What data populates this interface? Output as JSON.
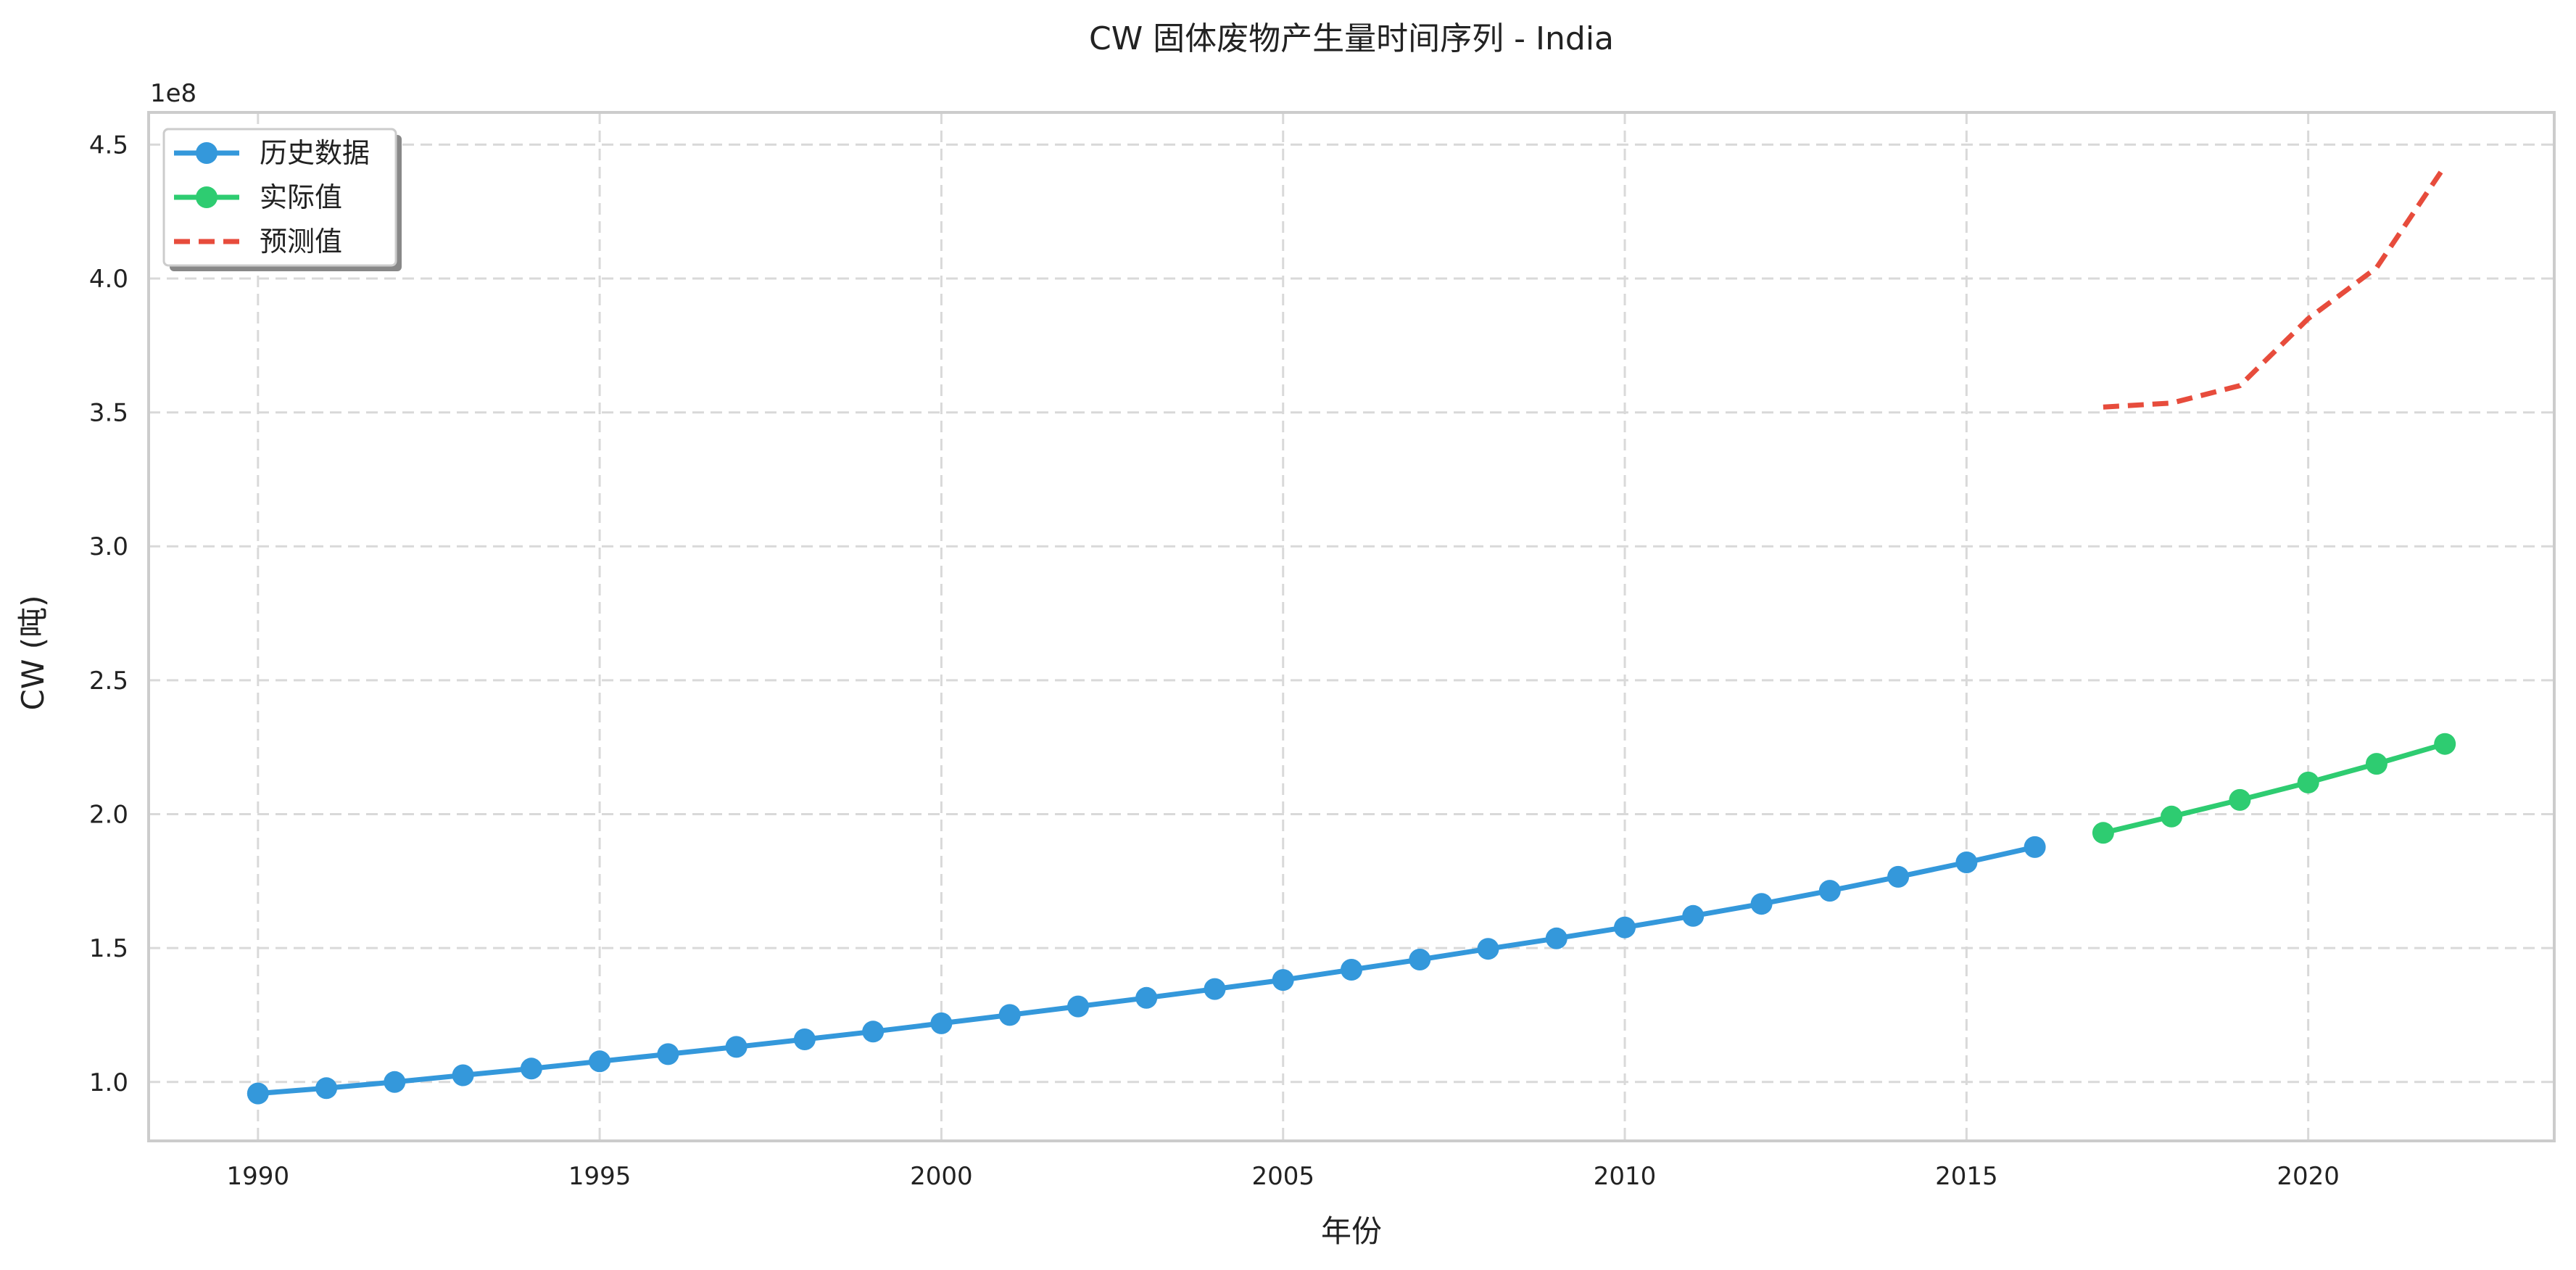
{
  "chart_data": {
    "type": "line",
    "title": "CW 固体废物产生量时间序列 - India",
    "xlabel": "年份",
    "ylabel": "CW (吨)",
    "y_scale_label": "1e8",
    "xlim": [
      1988.4,
      2023.6
    ],
    "ylim": [
      0.78,
      4.62
    ],
    "x_ticks": [
      1990,
      1995,
      2000,
      2005,
      2010,
      2015,
      2020
    ],
    "y_ticks": [
      1.0,
      1.5,
      2.0,
      2.5,
      3.0,
      3.5,
      4.0,
      4.5
    ],
    "y_tick_labels": [
      "1.0",
      "1.5",
      "2.0",
      "2.5",
      "3.0",
      "3.5",
      "4.0",
      "4.5"
    ],
    "grid": true,
    "legend_position": "top-left",
    "series": [
      {
        "name": "历史数据",
        "color": "#3498db",
        "style": "line-marker",
        "x": [
          1990,
          1991,
          1992,
          1993,
          1994,
          1995,
          1996,
          1997,
          1998,
          1999,
          2000,
          2001,
          2002,
          2003,
          2004,
          2005,
          2006,
          2007,
          2008,
          2009,
          2010,
          2011,
          2012,
          2013,
          2014,
          2015,
          2016
        ],
        "values": [
          0.957,
          0.977,
          1.0,
          1.025,
          1.05,
          1.077,
          1.104,
          1.131,
          1.159,
          1.188,
          1.219,
          1.25,
          1.282,
          1.314,
          1.347,
          1.381,
          1.419,
          1.457,
          1.497,
          1.536,
          1.577,
          1.62,
          1.665,
          1.714,
          1.766,
          1.82,
          1.877
        ]
      },
      {
        "name": "实际值",
        "color": "#2ecc71",
        "style": "line-marker",
        "x": [
          2017,
          2018,
          2019,
          2020,
          2021,
          2022
        ],
        "values": [
          1.93,
          1.991,
          2.053,
          2.118,
          2.188,
          2.262
        ]
      },
      {
        "name": "预测值",
        "color": "#e74c3c",
        "style": "dashed",
        "x": [
          2017,
          2018,
          2019,
          2020,
          2021,
          2022
        ],
        "values": [
          3.52,
          3.535,
          3.6,
          3.85,
          4.04,
          4.42
        ]
      }
    ]
  }
}
